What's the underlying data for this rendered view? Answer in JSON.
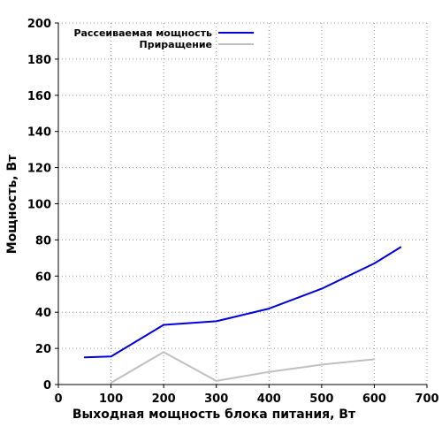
{
  "chart_data": {
    "type": "line",
    "xlabel": "Выходная мощность блока питания, Вт",
    "ylabel": "Мощность, Вт",
    "xlim": [
      0,
      700
    ],
    "ylim": [
      0,
      200
    ],
    "xticks": [
      0,
      100,
      200,
      300,
      400,
      500,
      600,
      700
    ],
    "yticks": [
      0,
      20,
      40,
      60,
      80,
      100,
      120,
      140,
      160,
      180,
      200
    ],
    "grid": true,
    "legend": "top-left",
    "series": [
      {
        "name": "Рассеиваемая мощность",
        "color": "#0000dd",
        "x": [
          50,
          100,
          200,
          300,
          400,
          500,
          600,
          650
        ],
        "y": [
          15,
          15.5,
          33,
          35,
          42,
          53,
          67,
          76
        ]
      },
      {
        "name": "Приращение",
        "color": "#c0c0c0",
        "x": [
          100,
          200,
          300,
          400,
          500,
          600
        ],
        "y": [
          1,
          18,
          2,
          7,
          11,
          14
        ]
      }
    ]
  }
}
